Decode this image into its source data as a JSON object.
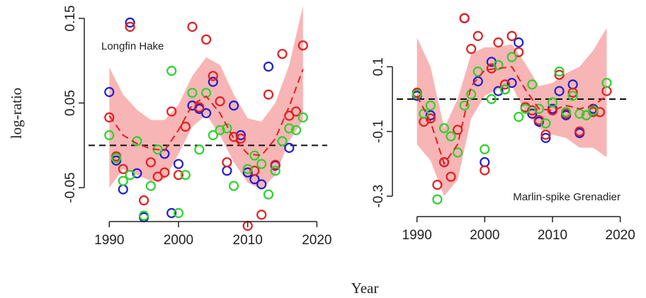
{
  "figure": {
    "xlabel": "Year",
    "ylabel": "log-ratio"
  },
  "colors": {
    "blue": "#1f1fd0",
    "red": "#e02020",
    "green": "#2ed12e",
    "band": "#f7a8a8",
    "trend": "#e02020",
    "zero_line": "#111111"
  },
  "chart_data": [
    {
      "type": "scatter",
      "title": "",
      "annotation": "Longfin Hake",
      "xlabel": "",
      "ylabel": "log-ratio",
      "xlim": [
        1987,
        2021.5
      ],
      "ylim": [
        -0.085,
        0.165
      ],
      "xticks": [
        1990,
        2000,
        2010,
        2020
      ],
      "yticks": [
        0.15,
        0.05,
        -0.05
      ],
      "ytick_labels": [
        "0.15",
        "0.05",
        "-0.05"
      ],
      "zero_line": 0,
      "grid": false,
      "series": [
        {
          "color": "blue",
          "x": [
            1990,
            1991,
            1992,
            1993,
            1994,
            1995,
            1998,
            1999,
            2000,
            2002,
            2003,
            2004,
            2005,
            2007,
            2008,
            2009,
            2010,
            2011,
            2012,
            2013,
            2014,
            2016
          ],
          "y": [
            0.063,
            -0.018,
            -0.052,
            0.145,
            -0.033,
            -0.085,
            -0.01,
            -0.08,
            -0.022,
            0.047,
            0.043,
            0.038,
            0.075,
            -0.03,
            0.047,
            0.012,
            -0.032,
            -0.04,
            -0.046,
            0.093,
            -0.024,
            -0.003
          ]
        },
        {
          "color": "red",
          "x": [
            1990,
            1991,
            1992,
            1993,
            1995,
            1996,
            1997,
            1998,
            1999,
            2000,
            2001,
            2002,
            2003,
            2004,
            2005,
            2006,
            2007,
            2008,
            2009,
            2010,
            2011,
            2012,
            2013,
            2014,
            2015,
            2016,
            2017,
            2018
          ],
          "y": [
            0.033,
            -0.013,
            -0.028,
            0.14,
            -0.065,
            -0.02,
            -0.037,
            -0.032,
            0.04,
            -0.035,
            0.022,
            0.14,
            0.045,
            0.125,
            0.082,
            0.052,
            -0.02,
            0.01,
            0.008,
            -0.095,
            -0.03,
            -0.082,
            0.06,
            -0.023,
            0.108,
            0.035,
            0.04,
            0.118
          ]
        },
        {
          "color": "green",
          "x": [
            1990,
            1991,
            1992,
            1993,
            1994,
            1995,
            1996,
            1997,
            1999,
            2000,
            2001,
            2002,
            2003,
            2004,
            2005,
            2006,
            2007,
            2008,
            2010,
            2011,
            2012,
            2013,
            2014,
            2015,
            2016,
            2017,
            2018
          ],
          "y": [
            0.012,
            -0.015,
            -0.042,
            -0.035,
            0.005,
            -0.083,
            -0.048,
            -0.005,
            0.088,
            -0.08,
            -0.035,
            0.062,
            -0.005,
            0.062,
            0.012,
            0.018,
            0.02,
            -0.048,
            -0.028,
            -0.012,
            -0.022,
            -0.058,
            -0.03,
            0.005,
            0.02,
            0.018,
            0.033
          ]
        }
      ],
      "trend": {
        "x": [
          1990,
          1992,
          1994,
          1996,
          1998,
          2000,
          2002,
          2004,
          2006,
          2008,
          2010,
          2012,
          2014,
          2016,
          2018
        ],
        "y": [
          0.035,
          0.012,
          0.002,
          -0.004,
          -0.006,
          0.018,
          0.048,
          0.058,
          0.038,
          0.008,
          -0.01,
          -0.012,
          0.008,
          0.046,
          0.09
        ],
        "lower": [
          -0.05,
          -0.028,
          -0.035,
          -0.042,
          -0.04,
          -0.01,
          0.022,
          0.036,
          0.012,
          -0.02,
          -0.044,
          -0.052,
          -0.035,
          0.005,
          0.03
        ],
        "upper": [
          0.092,
          0.06,
          0.042,
          0.03,
          0.03,
          0.048,
          0.082,
          0.104,
          0.095,
          0.06,
          0.032,
          0.028,
          0.05,
          0.095,
          0.165
        ]
      }
    },
    {
      "type": "scatter",
      "title": "",
      "annotation": "Marlin-spike Grenadier",
      "xlabel": "",
      "ylabel": "",
      "xlim": [
        1987,
        2021.5
      ],
      "ylim": [
        -0.35,
        0.28
      ],
      "xticks": [
        1990,
        2000,
        2010,
        2020
      ],
      "yticks": [
        0.1,
        -0.1,
        -0.3
      ],
      "ytick_labels": [
        "0.1",
        "-0.1",
        "-0.3"
      ],
      "zero_line": 0,
      "grid": false,
      "series": [
        {
          "color": "blue",
          "x": [
            1990,
            1992,
            1994,
            1997,
            1999,
            2000,
            2001,
            2002,
            2003,
            2004,
            2005,
            2007,
            2008,
            2009,
            2010,
            2011,
            2012,
            2013,
            2014,
            2016
          ],
          "y": [
            0.01,
            -0.05,
            -0.195,
            0.25,
            0.055,
            -0.195,
            0.115,
            0.025,
            0.03,
            0.05,
            0.175,
            -0.045,
            -0.07,
            -0.12,
            -0.03,
            0.025,
            -0.05,
            0.045,
            -0.105,
            -0.03
          ]
        },
        {
          "color": "red",
          "x": [
            1990,
            1991,
            1992,
            1993,
            1994,
            1995,
            1996,
            1997,
            1998,
            1999,
            2000,
            2001,
            2002,
            2003,
            2004,
            2005,
            2006,
            2007,
            2008,
            2009,
            2010,
            2011,
            2012,
            2013,
            2014,
            2015,
            2016,
            2017,
            2018
          ],
          "y": [
            0.02,
            -0.07,
            -0.06,
            -0.265,
            -0.195,
            -0.24,
            -0.095,
            0.25,
            0.155,
            0.195,
            -0.22,
            0.095,
            0.175,
            0.045,
            0.195,
            0.145,
            -0.025,
            -0.035,
            -0.065,
            -0.11,
            -0.035,
            0.075,
            -0.045,
            0.02,
            -0.1,
            -0.05,
            -0.04,
            -0.04,
            0.025
          ]
        },
        {
          "color": "green",
          "x": [
            1990,
            1991,
            1992,
            1993,
            1994,
            1995,
            1996,
            1997,
            1998,
            1999,
            2000,
            2001,
            2002,
            2003,
            2004,
            2005,
            2006,
            2007,
            2008,
            2009,
            2010,
            2011,
            2012,
            2013,
            2014,
            2015,
            2016,
            2018
          ],
          "y": [
            0.015,
            -0.045,
            -0.02,
            -0.31,
            -0.09,
            -0.115,
            -0.165,
            -0.02,
            0.015,
            0.085,
            -0.155,
            0.0,
            0.105,
            0.03,
            0.13,
            -0.055,
            -0.03,
            0.045,
            -0.03,
            -0.075,
            -0.01,
            0.085,
            -0.04,
            0.01,
            -0.045,
            -0.05,
            -0.035,
            0.05
          ]
        }
      ],
      "trend": {
        "x": [
          1990,
          1992,
          1994,
          1996,
          1998,
          2000,
          2002,
          2004,
          2006,
          2008,
          2010,
          2012,
          2014,
          2016,
          2018
        ],
        "y": [
          0.01,
          -0.07,
          -0.2,
          -0.14,
          0.04,
          0.09,
          0.095,
          0.1,
          0.03,
          -0.03,
          -0.035,
          -0.02,
          -0.03,
          -0.02,
          0.01
        ],
        "lower": [
          -0.14,
          -0.19,
          -0.3,
          -0.25,
          -0.06,
          0.01,
          0.03,
          0.04,
          -0.04,
          -0.09,
          -0.11,
          -0.12,
          -0.15,
          -0.15,
          -0.18
        ],
        "upper": [
          0.19,
          0.1,
          -0.09,
          0.0,
          0.14,
          0.16,
          0.16,
          0.17,
          0.11,
          0.04,
          0.05,
          0.08,
          0.1,
          0.15,
          0.22
        ]
      }
    }
  ]
}
